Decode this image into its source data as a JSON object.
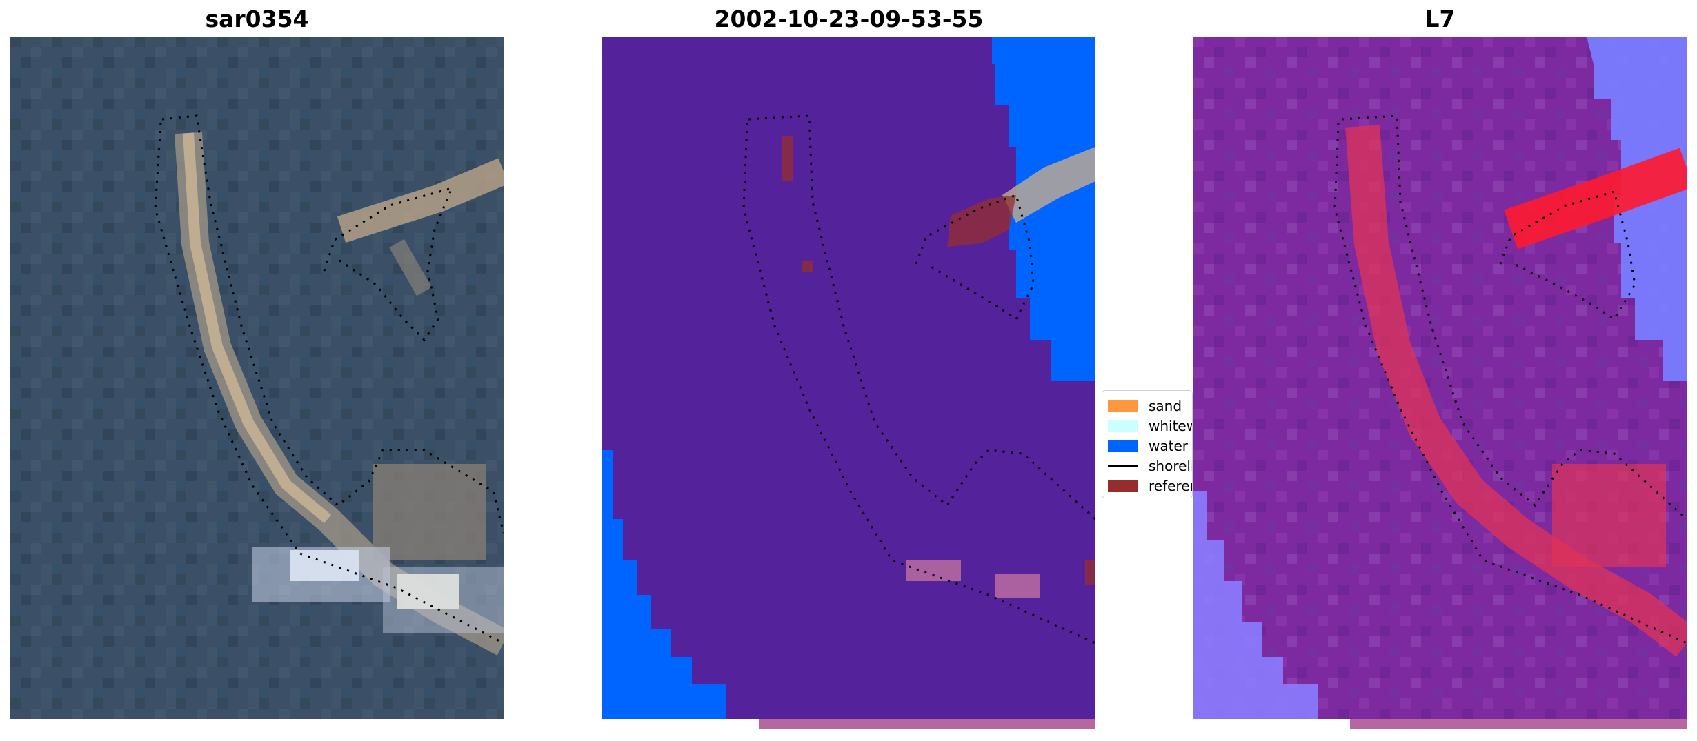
{
  "panels": [
    {
      "title": "sar0354"
    },
    {
      "title": "2002-10-23-09-53-55"
    },
    {
      "title": "L7"
    }
  ],
  "legend": {
    "items": [
      {
        "label": "sand",
        "color": "#ff9640"
      },
      {
        "label": "whitewater",
        "color": "#ccffff"
      },
      {
        "label": "water",
        "color": "#0064ff"
      },
      {
        "label": "shoreline",
        "color": "#000000"
      },
      {
        "label": "reference",
        "color": "#962d2d"
      }
    ]
  },
  "colors": {
    "rgb_water": "#3b4f66",
    "class_background": "#54229a",
    "class_water": "#0064ff",
    "index_background": "#7d2aa0",
    "index_high": "#ff1a2e",
    "index_low": "#7a7cff"
  }
}
